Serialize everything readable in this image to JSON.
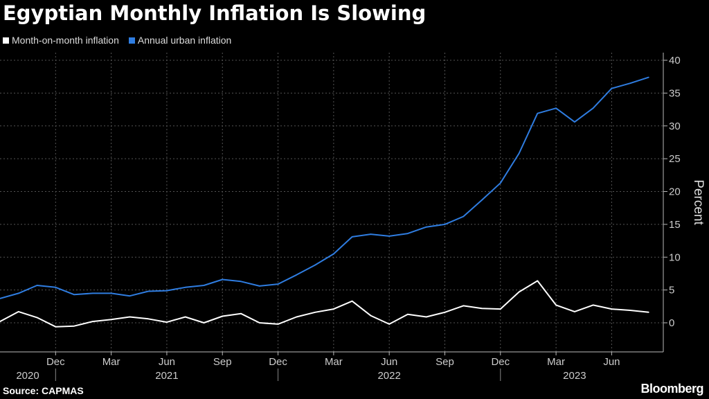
{
  "title": "Egyptian Monthly Inflation Is Slowing",
  "source": "Source: CAPMAS",
  "brand": "Bloomberg",
  "colors": {
    "background": "#000000",
    "grid": "#555555",
    "mom": "#ffffff",
    "annual": "#2f7de1"
  },
  "chart_data": {
    "type": "line",
    "ylabel": "Percent",
    "ylim": [
      -4.5,
      40.5
    ],
    "yticks": [
      0,
      5,
      10,
      15,
      20,
      25,
      30,
      35,
      40
    ],
    "grid": true,
    "legend_position": "top-left",
    "x": [
      "2020-09",
      "2020-10",
      "2020-11",
      "2020-12",
      "2021-01",
      "2021-02",
      "2021-03",
      "2021-04",
      "2021-05",
      "2021-06",
      "2021-07",
      "2021-08",
      "2021-09",
      "2021-10",
      "2021-11",
      "2021-12",
      "2022-01",
      "2022-02",
      "2022-03",
      "2022-04",
      "2022-05",
      "2022-06",
      "2022-07",
      "2022-08",
      "2022-09",
      "2022-10",
      "2022-11",
      "2022-12",
      "2023-01",
      "2023-02",
      "2023-03",
      "2023-04",
      "2023-05",
      "2023-06",
      "2023-07",
      "2023-08"
    ],
    "xticks": [
      {
        "x": "2020-12",
        "label": "Dec"
      },
      {
        "x": "2021-03",
        "label": "Mar"
      },
      {
        "x": "2021-06",
        "label": "Jun"
      },
      {
        "x": "2021-09",
        "label": "Sep"
      },
      {
        "x": "2021-12",
        "label": "Dec"
      },
      {
        "x": "2022-03",
        "label": "Mar"
      },
      {
        "x": "2022-06",
        "label": "Jun"
      },
      {
        "x": "2022-09",
        "label": "Sep"
      },
      {
        "x": "2022-12",
        "label": "Dec"
      },
      {
        "x": "2023-03",
        "label": "Mar"
      },
      {
        "x": "2023-06",
        "label": "Jun"
      }
    ],
    "years": [
      {
        "label": "2020",
        "x": "2020-11"
      },
      {
        "label": "2021",
        "x": "2021-06"
      },
      {
        "label": "2022",
        "x": "2022-06"
      },
      {
        "label": "2023",
        "x": "2023-04"
      }
    ],
    "year_dividers": [
      "2020-12",
      "2021-12",
      "2022-12"
    ],
    "series": [
      {
        "name": "Month-on-month inflation",
        "color": "#ffffff",
        "values": [
          0.2,
          1.7,
          0.8,
          -0.6,
          -0.5,
          0.2,
          0.5,
          0.9,
          0.6,
          0.1,
          0.9,
          0.0,
          1.0,
          1.4,
          0.0,
          -0.2,
          0.9,
          1.6,
          2.1,
          3.3,
          1.1,
          -0.2,
          1.3,
          0.9,
          1.6,
          2.6,
          2.2,
          2.1,
          4.7,
          6.4,
          2.7,
          1.7,
          2.7,
          2.1,
          1.9,
          1.6
        ]
      },
      {
        "name": "Annual urban inflation",
        "color": "#2f7de1",
        "values": [
          3.7,
          4.5,
          5.7,
          5.4,
          4.3,
          4.5,
          4.5,
          4.1,
          4.8,
          4.9,
          5.4,
          5.7,
          6.6,
          6.3,
          5.6,
          5.9,
          7.3,
          8.8,
          10.5,
          13.1,
          13.5,
          13.2,
          13.6,
          14.6,
          15.0,
          16.2,
          18.7,
          21.3,
          25.8,
          31.9,
          32.7,
          30.6,
          32.7,
          35.7,
          36.5,
          37.4
        ]
      }
    ]
  }
}
